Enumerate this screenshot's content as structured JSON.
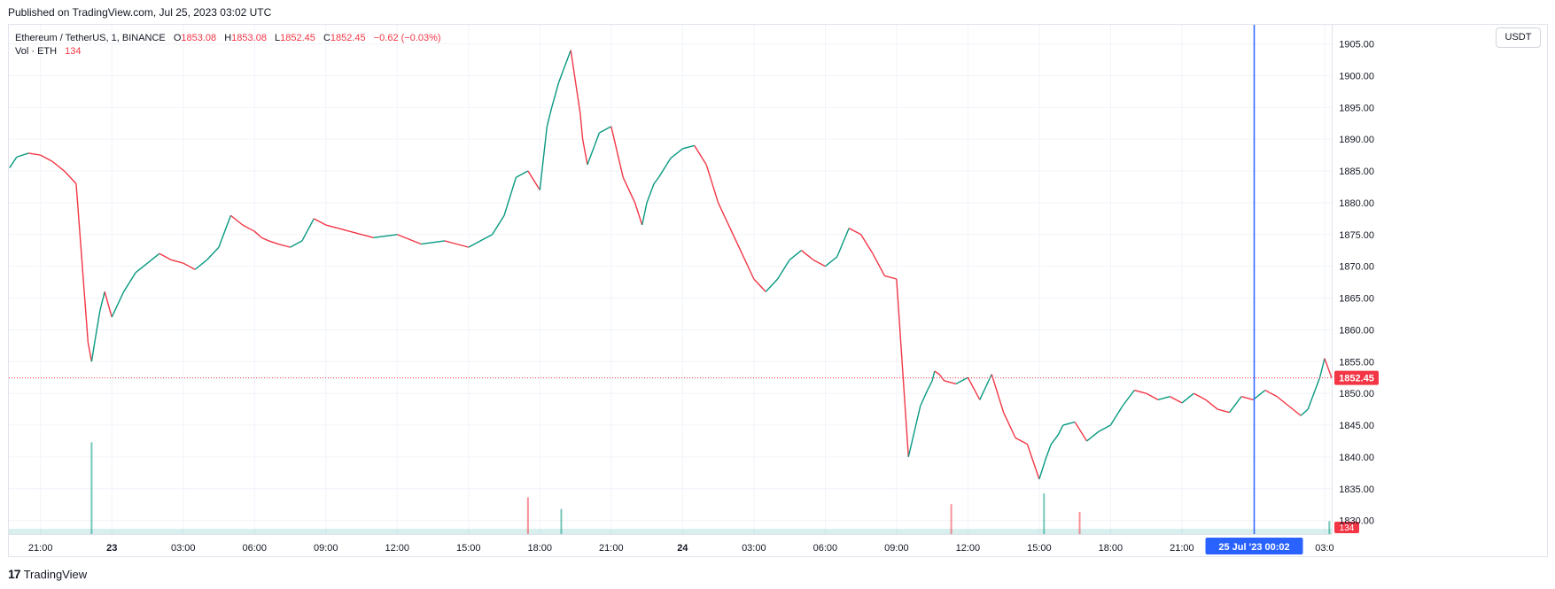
{
  "header": {
    "published": "Published on TradingView.com, Jul 25, 2023 03:02 UTC"
  },
  "legend": {
    "symbol": "Ethereum / TetherUS, 1, BINANCE",
    "o_label": "O",
    "o": "1853.08",
    "h_label": "H",
    "h": "1853.08",
    "l_label": "L",
    "l": "1852.45",
    "c_label": "C",
    "c": "1852.45",
    "change": "−0.62 (−0.03%)",
    "vol_label": "Vol · ETH",
    "vol_value": "134"
  },
  "currency_button": "USDT",
  "footer": {
    "logo": "17",
    "brand": "TradingView"
  },
  "colors": {
    "up": "#089981",
    "down": "#f23645",
    "crosshair": "#2962ff",
    "grid": "#f0f3fa"
  },
  "chart_data": {
    "type": "line",
    "symbol": "ETHUSDT",
    "timeframe": "1",
    "y_ticks": [
      "1830.00",
      "1835.00",
      "1840.00",
      "1845.00",
      "1850.00",
      "1855.00",
      "1860.00",
      "1865.00",
      "1870.00",
      "1875.00",
      "1880.00",
      "1885.00",
      "1890.00",
      "1895.00",
      "1900.00",
      "1905.00"
    ],
    "ylim": [
      1828,
      1908
    ],
    "x_ticks": [
      "21:00",
      "23",
      "03:00",
      "06:00",
      "09:00",
      "12:00",
      "15:00",
      "18:00",
      "21:00",
      "24",
      "03:00",
      "06:00",
      "09:00",
      "12:00",
      "15:00",
      "18:00",
      "21:00",
      "03:0"
    ],
    "x_tick_hours": [
      21,
      24,
      27,
      30,
      33,
      36,
      39,
      42,
      45,
      48,
      51,
      54,
      57,
      60,
      63,
      66,
      69,
      75
    ],
    "xlim_hours": [
      19.67,
      75.3
    ],
    "price_series": {
      "name": "Close",
      "x_hours": [
        19.7,
        20.0,
        20.5,
        21.0,
        21.5,
        22.0,
        22.5,
        23.0,
        23.15,
        23.3,
        23.5,
        23.7,
        24.0,
        24.5,
        25.0,
        25.5,
        26.0,
        26.5,
        27.0,
        27.5,
        28.0,
        28.5,
        29.0,
        29.5,
        30.0,
        30.3,
        30.6,
        31.0,
        31.5,
        32.0,
        32.5,
        33.0,
        33.5,
        34.0,
        35.0,
        36.0,
        37.0,
        38.0,
        39.0,
        40.0,
        40.5,
        41.0,
        41.5,
        42.0,
        42.3,
        42.5,
        42.8,
        43.0,
        43.3,
        43.5,
        43.7,
        43.8,
        44.0,
        44.3,
        44.5,
        45.0,
        45.5,
        46.0,
        46.3,
        46.5,
        46.8,
        47.0,
        47.5,
        48.0,
        48.5,
        49.0,
        49.5,
        50.0,
        50.5,
        51.0,
        51.5,
        52.0,
        52.5,
        53.0,
        53.5,
        54.0,
        54.5,
        55.0,
        55.5,
        56.0,
        56.5,
        57.0,
        57.5,
        58.0,
        58.3,
        58.5,
        58.6,
        58.8,
        59.0,
        59.5,
        60.0,
        60.5,
        61.0,
        61.5,
        62.0,
        62.5,
        63.0,
        63.3,
        63.5,
        63.8,
        64.0,
        64.5,
        65.0,
        65.5,
        66.0,
        66.5,
        67.0,
        67.5,
        68.0,
        68.5,
        69.0,
        69.5,
        70.0,
        70.5,
        71.0,
        71.5,
        72.0,
        72.5,
        73.0,
        73.5,
        74.0,
        74.3,
        74.5,
        74.8,
        75.0,
        75.3
      ],
      "y": [
        1885.5,
        1887.2,
        1887.8,
        1887.5,
        1886.5,
        1885.0,
        1883.0,
        1858.0,
        1855.0,
        1858.5,
        1863.0,
        1866.0,
        1862.0,
        1866.0,
        1869.0,
        1870.5,
        1872.0,
        1871.0,
        1870.5,
        1869.5,
        1871.0,
        1873.0,
        1878.0,
        1876.5,
        1875.5,
        1874.5,
        1874.0,
        1873.5,
        1873.0,
        1874.0,
        1877.5,
        1876.5,
        1876.0,
        1875.5,
        1874.5,
        1875.0,
        1873.5,
        1874.0,
        1873.0,
        1875.0,
        1878.0,
        1884.0,
        1885.0,
        1882.0,
        1892.0,
        1895.0,
        1899.0,
        1901.0,
        1904.0,
        1899.0,
        1894.0,
        1890.0,
        1886.0,
        1889.0,
        1891.0,
        1892.0,
        1884.0,
        1880.0,
        1876.5,
        1880.0,
        1883.0,
        1884.0,
        1887.0,
        1888.5,
        1889.0,
        1886.0,
        1880.0,
        1876.0,
        1872.0,
        1868.0,
        1866.0,
        1868.0,
        1871.0,
        1872.5,
        1871.0,
        1870.0,
        1871.5,
        1876.0,
        1875.0,
        1872.0,
        1868.5,
        1868.0,
        1840.0,
        1848.0,
        1850.5,
        1852.0,
        1853.5,
        1853.0,
        1852.0,
        1851.5,
        1852.5,
        1849.0,
        1853.0,
        1847.0,
        1843.0,
        1842.0,
        1836.5,
        1840.0,
        1842.0,
        1843.5,
        1845.0,
        1845.5,
        1842.5,
        1844.0,
        1845.0,
        1848.0,
        1850.5,
        1850.0,
        1849.0,
        1849.5,
        1848.5,
        1850.0,
        1849.0,
        1847.5,
        1847.0,
        1849.5,
        1849.0,
        1850.5,
        1849.5,
        1848.0,
        1846.5,
        1847.5,
        1849.5,
        1852.5,
        1855.5,
        1852.45
      ]
    },
    "volume_series": {
      "name": "Vol · ETH",
      "x_hours": [
        23.15,
        41.5,
        42.9,
        59.3,
        63.2,
        64.7,
        75.2
      ],
      "values": [
        950,
        380,
        260,
        310,
        420,
        230,
        134
      ]
    },
    "volume_ylim": [
      0,
      1100
    ],
    "last_price": "1852.45",
    "last_price_value": 1852.45,
    "last_volume": "134",
    "crosshair": {
      "x_hour": 72.04,
      "label": "25 Jul '23   00:02"
    }
  }
}
